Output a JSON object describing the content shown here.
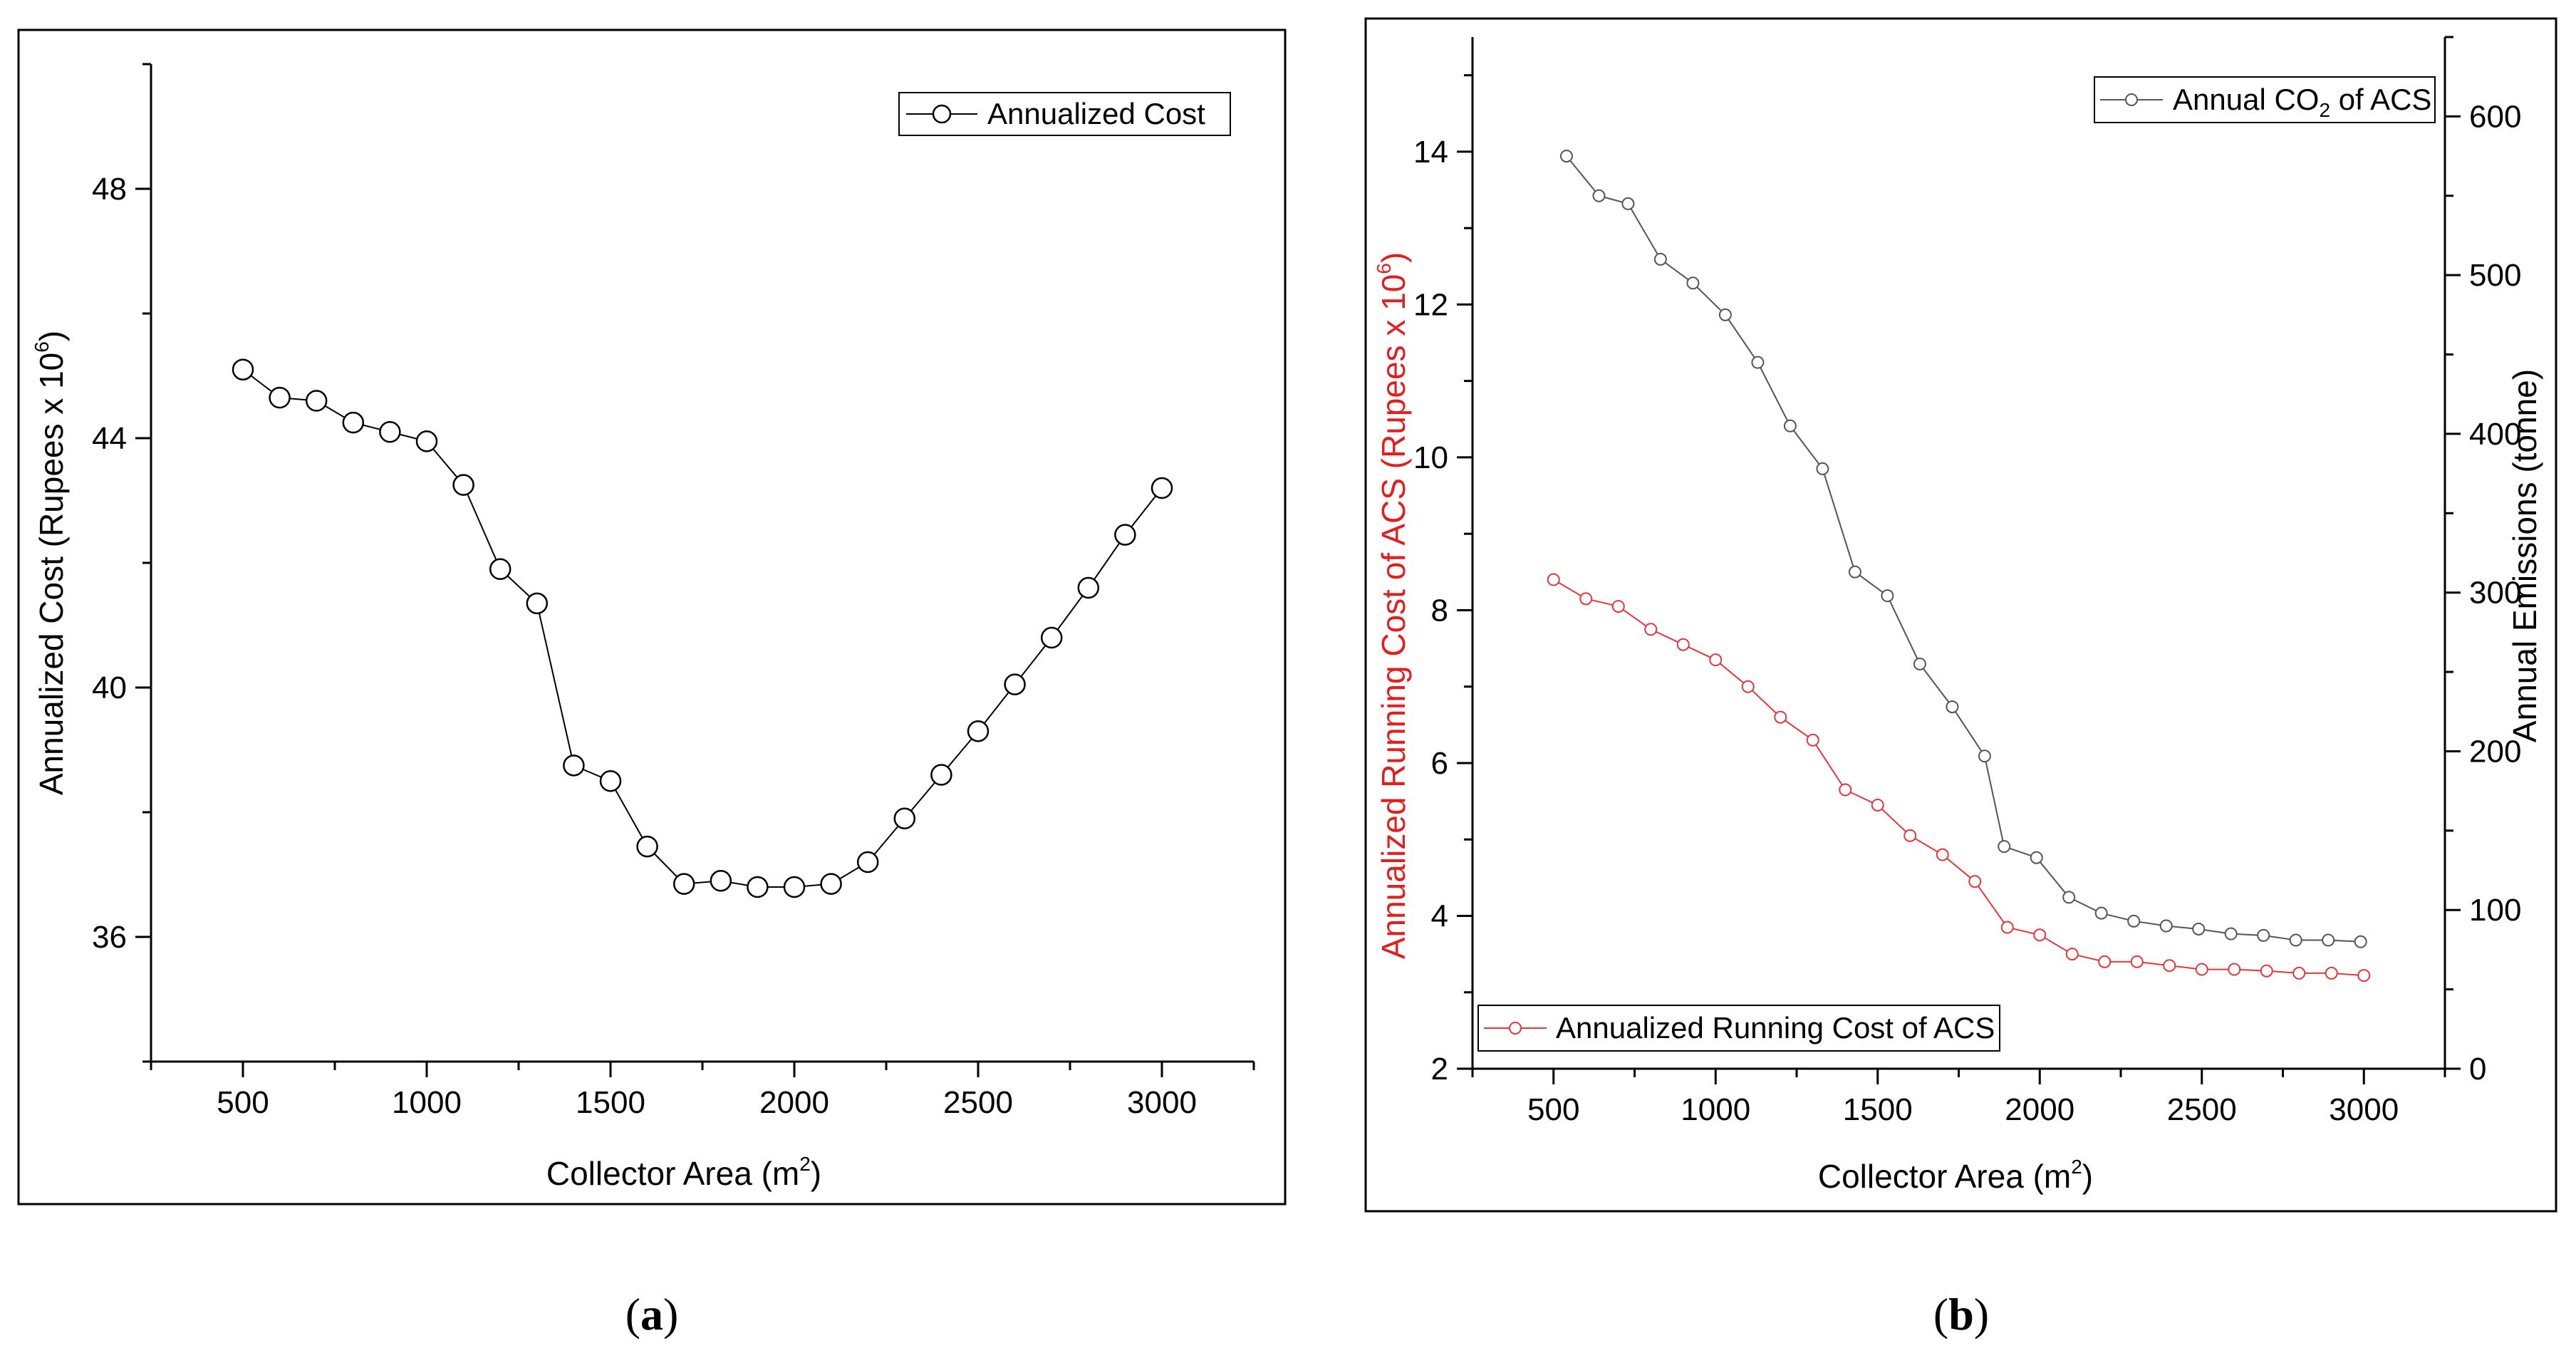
{
  "chart_data": [
    {
      "id": "a",
      "type": "line",
      "panel_label": "a",
      "title": "",
      "xlabel": "Collector Area (m",
      "xlabel_sup": "2",
      "xlabel_end": ")",
      "ylabel": "Annualized Cost (Rupees x 10",
      "ylabel_sup": "6",
      "ylabel_end": ")",
      "xlim": [
        250,
        3250
      ],
      "ylim": [
        34,
        50
      ],
      "xticks": [
        500,
        1000,
        1500,
        2000,
        2500,
        3000
      ],
      "yticks": [
        36,
        40,
        44,
        48
      ],
      "legend_position": "top-right",
      "series": [
        {
          "name": "Annualized Cost",
          "color": "#000000",
          "x": [
            500,
            600,
            700,
            800,
            900,
            1000,
            1100,
            1200,
            1300,
            1400,
            1500,
            1600,
            1700,
            1800,
            1900,
            2000,
            2100,
            2200,
            2300,
            2400,
            2500,
            2600,
            2700,
            2800,
            2900,
            3000
          ],
          "values": [
            45.1,
            44.65,
            44.6,
            44.25,
            44.1,
            43.95,
            43.25,
            41.9,
            41.35,
            38.75,
            38.5,
            37.45,
            36.85,
            36.9,
            36.8,
            36.8,
            36.85,
            37.2,
            37.9,
            38.6,
            39.3,
            40.05,
            40.8,
            41.6,
            42.45,
            43.2
          ]
        }
      ]
    },
    {
      "id": "b",
      "type": "line",
      "panel_label": "b",
      "title": "",
      "xlabel": "Collector Area (m",
      "xlabel_sup": "2",
      "xlabel_end": ")",
      "ylabel": "Annualized Running Cost of ACS (Rupees x 10",
      "ylabel_sup": "6",
      "ylabel_end": ")",
      "ylabel_color": "#e02020",
      "y2label": "Annual Emissions (tonne)",
      "xlim": [
        250,
        3250
      ],
      "ylim": [
        2,
        15.5
      ],
      "y2lim": [
        0,
        650
      ],
      "xticks": [
        500,
        1000,
        1500,
        2000,
        2500,
        3000
      ],
      "yticks": [
        2,
        4,
        6,
        8,
        10,
        12,
        14
      ],
      "y2ticks": [
        0,
        100,
        200,
        300,
        400,
        500,
        600
      ],
      "series": [
        {
          "name": "Annualized Running Cost of ACS",
          "axis": "left",
          "color": "#e0393c",
          "legend_position": "bottom-left",
          "x": [
            500,
            600,
            700,
            800,
            900,
            1000,
            1100,
            1200,
            1300,
            1400,
            1500,
            1600,
            1700,
            1800,
            1900,
            2000,
            2100,
            2200,
            2300,
            2400,
            2500,
            2600,
            2700,
            2800,
            2900,
            3000
          ],
          "values": [
            8.4,
            8.15,
            8.05,
            7.75,
            7.55,
            7.35,
            7.0,
            6.6,
            6.3,
            5.65,
            5.45,
            5.05,
            4.8,
            4.45,
            3.85,
            3.75,
            3.5,
            3.4,
            3.4,
            3.35,
            3.3,
            3.3,
            3.28,
            3.25,
            3.25,
            3.22
          ]
        },
        {
          "name": "Annual CO",
          "name_sub": "2",
          "name_end": " of ACS",
          "axis": "right",
          "color": "#555555",
          "legend_position": "top-right",
          "x": [
            540,
            640,
            730,
            830,
            930,
            1030,
            1130,
            1230,
            1330,
            1430,
            1530,
            1630,
            1730,
            1830,
            1890,
            1990,
            2090,
            2190,
            2290,
            2390,
            2490,
            2590,
            2690,
            2790,
            2890,
            2990
          ],
          "values": [
            575,
            550,
            545,
            510,
            495,
            475,
            445,
            405,
            378,
            313,
            298,
            255,
            228,
            197,
            140,
            133,
            108,
            98,
            93,
            90,
            88,
            85,
            84,
            81,
            81,
            80
          ]
        }
      ]
    }
  ]
}
